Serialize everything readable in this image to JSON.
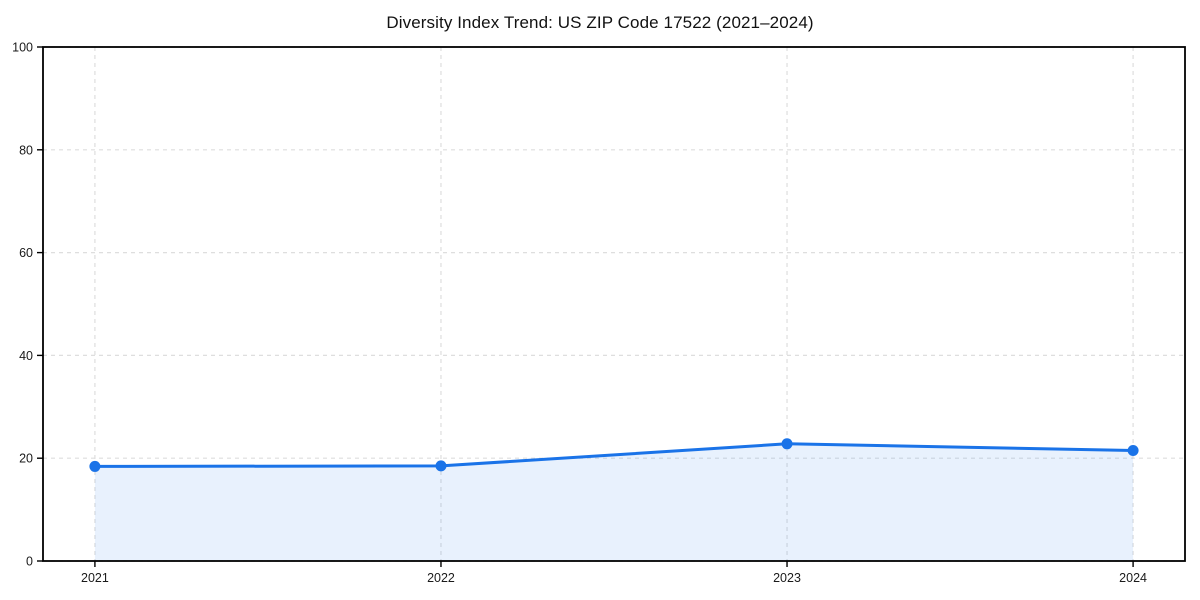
{
  "page": {
    "background_color": "#ffffff"
  },
  "chart_data": {
    "type": "area",
    "title": "Diversity Index Trend: US ZIP Code 17522 (2021–2024)",
    "categories": [
      "2021",
      "2022",
      "2023",
      "2024"
    ],
    "series": [
      {
        "name": "Diversity Index",
        "values": [
          18.4,
          18.5,
          22.8,
          21.5
        ]
      }
    ],
    "xlabel": "",
    "ylabel": "",
    "ylim": [
      0,
      100
    ],
    "yticks": [
      0,
      20,
      40,
      60,
      80,
      100
    ],
    "grid": true,
    "grid_style": "dashed",
    "legend_position": "none",
    "line_color": "#1a73e8",
    "marker_color": "#1a73e8",
    "fill_color": "rgba(26, 115, 232, 0.10)",
    "grid_color": "#dedede",
    "axis_color": "#000000",
    "tick_label_color": "#1a1a1a"
  }
}
